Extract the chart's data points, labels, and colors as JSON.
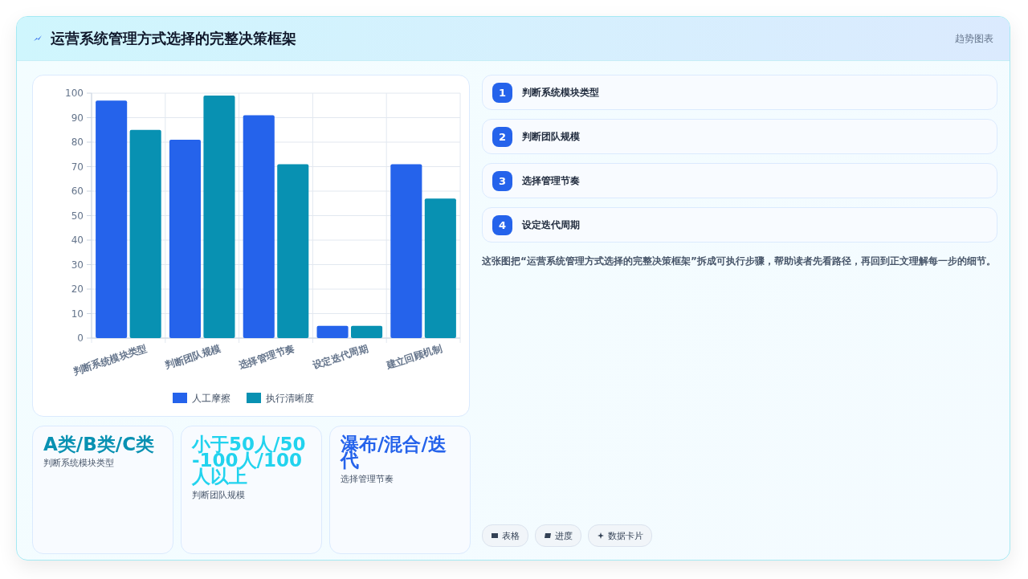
{
  "chart_data": {
    "type": "bar",
    "title": "运营系统管理方式选择的完整决策框架",
    "subtitle": "趋势图表",
    "categories": [
      "判断系统模块类型",
      "判断团队规模",
      "选择管理节奏",
      "设定迭代周期",
      "建立回顾机制"
    ],
    "series": [
      {
        "name": "人工摩擦",
        "color": "#2563eb",
        "values": [
          97,
          81,
          91,
          5,
          71
        ]
      },
      {
        "name": "执行清晰度",
        "color": "#0891b2",
        "values": [
          85,
          99,
          71,
          5,
          57
        ]
      }
    ],
    "ylim": [
      0,
      100
    ],
    "yticks": [
      0,
      10,
      20,
      30,
      40,
      50,
      60,
      70,
      80,
      90,
      100
    ],
    "grid": true,
    "legend": "bottom",
    "annotations": [
      "1",
      "判断系统模块类型",
      "2",
      "判断团队规模",
      "3",
      "选择管理节奏",
      "4",
      "设定迭代周期",
      "这张图把“运营系统管理方式选择的完整决策框架”拆成可执行步骤，帮助读者先看路径，再回到正文理解每一步的细节。",
      "A类/B类/C类",
      "判断系统模块类型",
      "小于50人/50-100人/100人以上",
      "判断团队规模",
      "瀑布/混合/迭代",
      "选择管理节奏",
      "表格",
      "进度",
      "数据卡片"
    ]
  }
}
